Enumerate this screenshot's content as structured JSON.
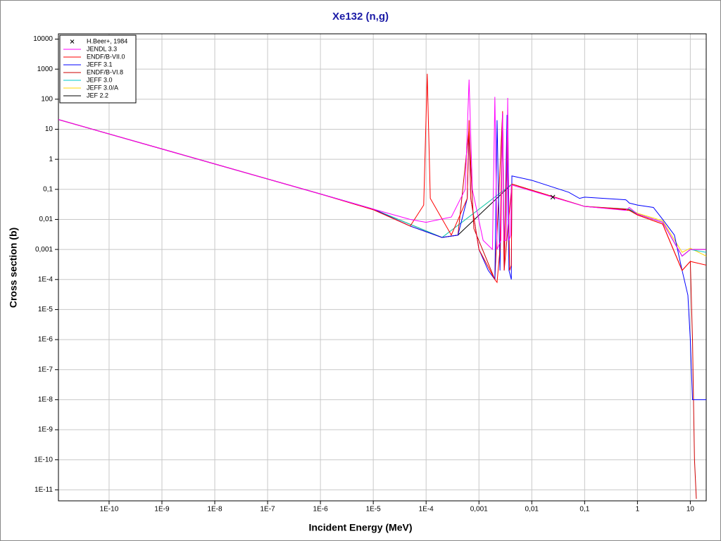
{
  "chart_data": {
    "type": "line",
    "title": "Xe132 (n,g)",
    "x_label": "Incident Energy (MeV)",
    "y_label": "Cross section (b)",
    "log_x": true,
    "log_y": true,
    "grid": true,
    "legend": "top-left",
    "xlim": [
      1.1e-11,
      20
    ],
    "ylim": [
      4.3e-12,
      15000
    ],
    "xticks": [
      {
        "value": 1e-10,
        "label": "1E-10"
      },
      {
        "value": 1e-09,
        "label": "1E-9"
      },
      {
        "value": 1e-08,
        "label": "1E-8"
      },
      {
        "value": 1e-07,
        "label": "1E-7"
      },
      {
        "value": 1e-06,
        "label": "1E-6"
      },
      {
        "value": 1e-05,
        "label": "1E-5"
      },
      {
        "value": 0.0001,
        "label": "1E-4"
      },
      {
        "value": 0.001,
        "label": "0,001"
      },
      {
        "value": 0.01,
        "label": "0,01"
      },
      {
        "value": 0.1,
        "label": "0,1"
      },
      1,
      10
    ],
    "yticks": [
      10000,
      1000,
      100,
      10,
      1,
      {
        "value": 0.1,
        "label": "0,1"
      },
      {
        "value": 0.01,
        "label": "0,01"
      },
      {
        "value": 0.001,
        "label": "0,001"
      },
      {
        "value": 0.0001,
        "label": "1E-4"
      },
      {
        "value": 1e-05,
        "label": "1E-5"
      },
      {
        "value": 1e-06,
        "label": "1E-6"
      },
      {
        "value": 1e-07,
        "label": "1E-7"
      },
      {
        "value": 1e-08,
        "label": "1E-8"
      },
      {
        "value": 1e-09,
        "label": "1E-9"
      },
      {
        "value": 1e-10,
        "label": "1E-10"
      },
      {
        "value": 1e-11,
        "label": "1E-11"
      }
    ],
    "series": [
      {
        "name": "H.Beer+, 1984",
        "type": "scatter",
        "color": "#000000",
        "x": [
          0.025
        ],
        "values": [
          0.055
        ]
      },
      {
        "name": "JENDL 3.3",
        "color": "#ff00ff",
        "x": [
          1.1e-11,
          1e-08,
          1e-06,
          1e-05,
          5e-05,
          0.0001,
          0.0003,
          0.00055,
          0.00065,
          0.00075,
          0.0012,
          0.0018,
          0.002,
          0.0022,
          0.0026,
          0.0028,
          0.003,
          0.0033,
          0.0035,
          0.0037,
          0.004,
          0.0041,
          0.025,
          0.1,
          0.6,
          0.7,
          1,
          3,
          7,
          10,
          20
        ],
        "values": [
          21,
          0.7,
          0.07,
          0.022,
          0.01,
          0.008,
          0.012,
          0.1,
          450,
          0.1,
          0.002,
          0.001,
          120,
          0.001,
          0.002,
          35,
          0.002,
          0.002,
          110,
          0.002,
          0.003,
          0.14,
          0.055,
          0.027,
          0.02,
          0.025,
          0.015,
          0.008,
          0.0006,
          0.001,
          0.001
        ]
      },
      {
        "name": "ENDF/B-VII.0",
        "color": "#ff0000",
        "x": [
          1.1e-11,
          1e-08,
          1e-06,
          1e-05,
          5e-05,
          9e-05,
          0.000105,
          0.00012,
          0.0003,
          0.0006,
          0.00065,
          0.0007,
          0.001,
          0.002,
          0.0022,
          0.0025,
          0.0028,
          0.003,
          0.0035,
          0.0038,
          0.0041,
          0.0042,
          0.1,
          0.6,
          0.7,
          1,
          3,
          7,
          10,
          20
        ],
        "values": [
          21,
          0.7,
          0.07,
          0.021,
          0.006,
          0.03,
          700,
          0.05,
          0.003,
          0.05,
          20,
          0.05,
          0.001,
          0.0001,
          8e-05,
          0.001,
          40,
          0.0002,
          30,
          0.0002,
          0.0003,
          0.15,
          0.027,
          0.022,
          0.02,
          0.014,
          0.007,
          0.0002,
          0.0004,
          0.0003
        ]
      },
      {
        "name": "JEFF 3.1",
        "color": "#0000ff",
        "x": [
          1.1e-11,
          1e-08,
          1e-06,
          1e-05,
          5e-05,
          0.0002,
          0.0004,
          0.0006,
          0.00065,
          0.0007,
          0.001,
          0.0015,
          0.002,
          0.0022,
          0.0025,
          0.0028,
          0.003,
          0.0034,
          0.0037,
          0.0041,
          0.0042,
          0.01,
          0.05,
          0.08,
          0.1,
          0.6,
          0.65,
          0.7,
          1,
          2,
          3,
          5,
          7,
          9,
          10,
          11,
          12,
          20
        ],
        "values": [
          21,
          0.7,
          0.07,
          0.022,
          0.006,
          0.0025,
          0.003,
          0.05,
          10,
          0.05,
          0.001,
          0.0002,
          0.0001,
          20,
          0.0002,
          30,
          0.0002,
          30,
          0.0002,
          0.0001,
          0.28,
          0.2,
          0.08,
          0.05,
          0.055,
          0.045,
          0.04,
          0.035,
          0.03,
          0.025,
          0.01,
          0.003,
          0.0002,
          3e-05,
          1e-06,
          1e-08,
          1e-08,
          1e-08
        ]
      },
      {
        "name": "ENDF/B-VI.8",
        "color": "#cc0000",
        "x": [
          1.1e-11,
          1e-08,
          1e-06,
          1e-05,
          5e-05,
          0.0002,
          0.0004,
          0.00065,
          0.0008,
          0.002,
          0.0028,
          0.003,
          0.0042,
          0.1,
          0.7,
          1,
          3,
          7,
          10,
          11,
          12,
          13
        ],
        "values": [
          21,
          0.7,
          0.07,
          0.021,
          0.006,
          0.0025,
          0.003,
          10,
          0.005,
          0.0001,
          35,
          0.0002,
          0.15,
          0.027,
          0.02,
          0.014,
          0.007,
          0.0002,
          0.0004,
          1e-06,
          1e-10,
          5e-12
        ]
      },
      {
        "name": "JEFF 3.0",
        "color": "#00c8c8",
        "x": [
          1.1e-11,
          1e-06,
          1e-05,
          0.0002,
          0.0042,
          0.1,
          0.7,
          1,
          3,
          7,
          10,
          20
        ],
        "values": [
          21,
          0.07,
          0.022,
          0.0025,
          0.15,
          0.027,
          0.022,
          0.015,
          0.008,
          0.0006,
          0.001,
          0.0008
        ]
      },
      {
        "name": "JEFF 3.0/A",
        "color": "#ffd700",
        "x": [
          1.1e-11,
          1e-06,
          1e-05,
          0.0002,
          0.0042,
          0.1,
          0.7,
          1,
          3,
          7,
          10,
          20
        ],
        "values": [
          21,
          0.07,
          0.022,
          0.0025,
          0.15,
          0.027,
          0.022,
          0.016,
          0.009,
          0.0008,
          0.0011,
          0.0006
        ]
      },
      {
        "name": "JEF 2.2",
        "color": "#000000",
        "x": [
          1.1e-11,
          1e-06,
          1e-05,
          0.0002,
          0.0004,
          0.0042,
          0.1,
          0.7,
          1,
          3,
          7,
          10,
          20
        ],
        "values": [
          21,
          0.07,
          0.022,
          0.0025,
          0.003,
          0.15,
          0.027,
          0.021,
          0.015,
          0.008,
          0.0006,
          0.001,
          0.001
        ]
      }
    ]
  }
}
